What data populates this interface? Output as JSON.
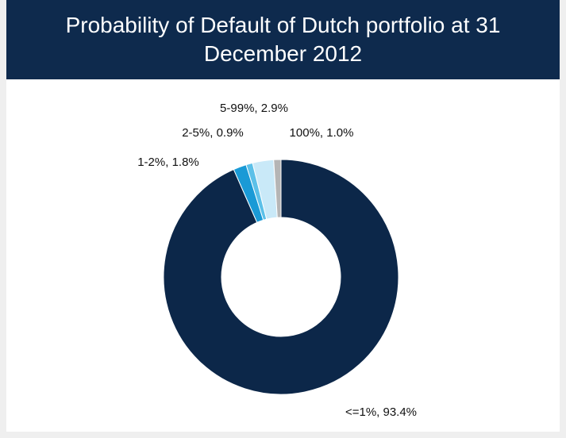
{
  "chart_data": {
    "type": "donut",
    "title": "Probability of Default of Dutch portfolio at 31 December 2012",
    "values": [
      93.4,
      1.8,
      0.9,
      2.9,
      1.0
    ],
    "value_labels": [
      "<=1%, 93.4%",
      "1-2%, 1.8%",
      "2-5%, 0.9%",
      "5-99%, 2.9%",
      "100%, 1.0%"
    ],
    "colors": [
      "#0c2749",
      "#1a9ad6",
      "#5cc0e8",
      "#c9e9f8",
      "#b5b5b5"
    ]
  }
}
